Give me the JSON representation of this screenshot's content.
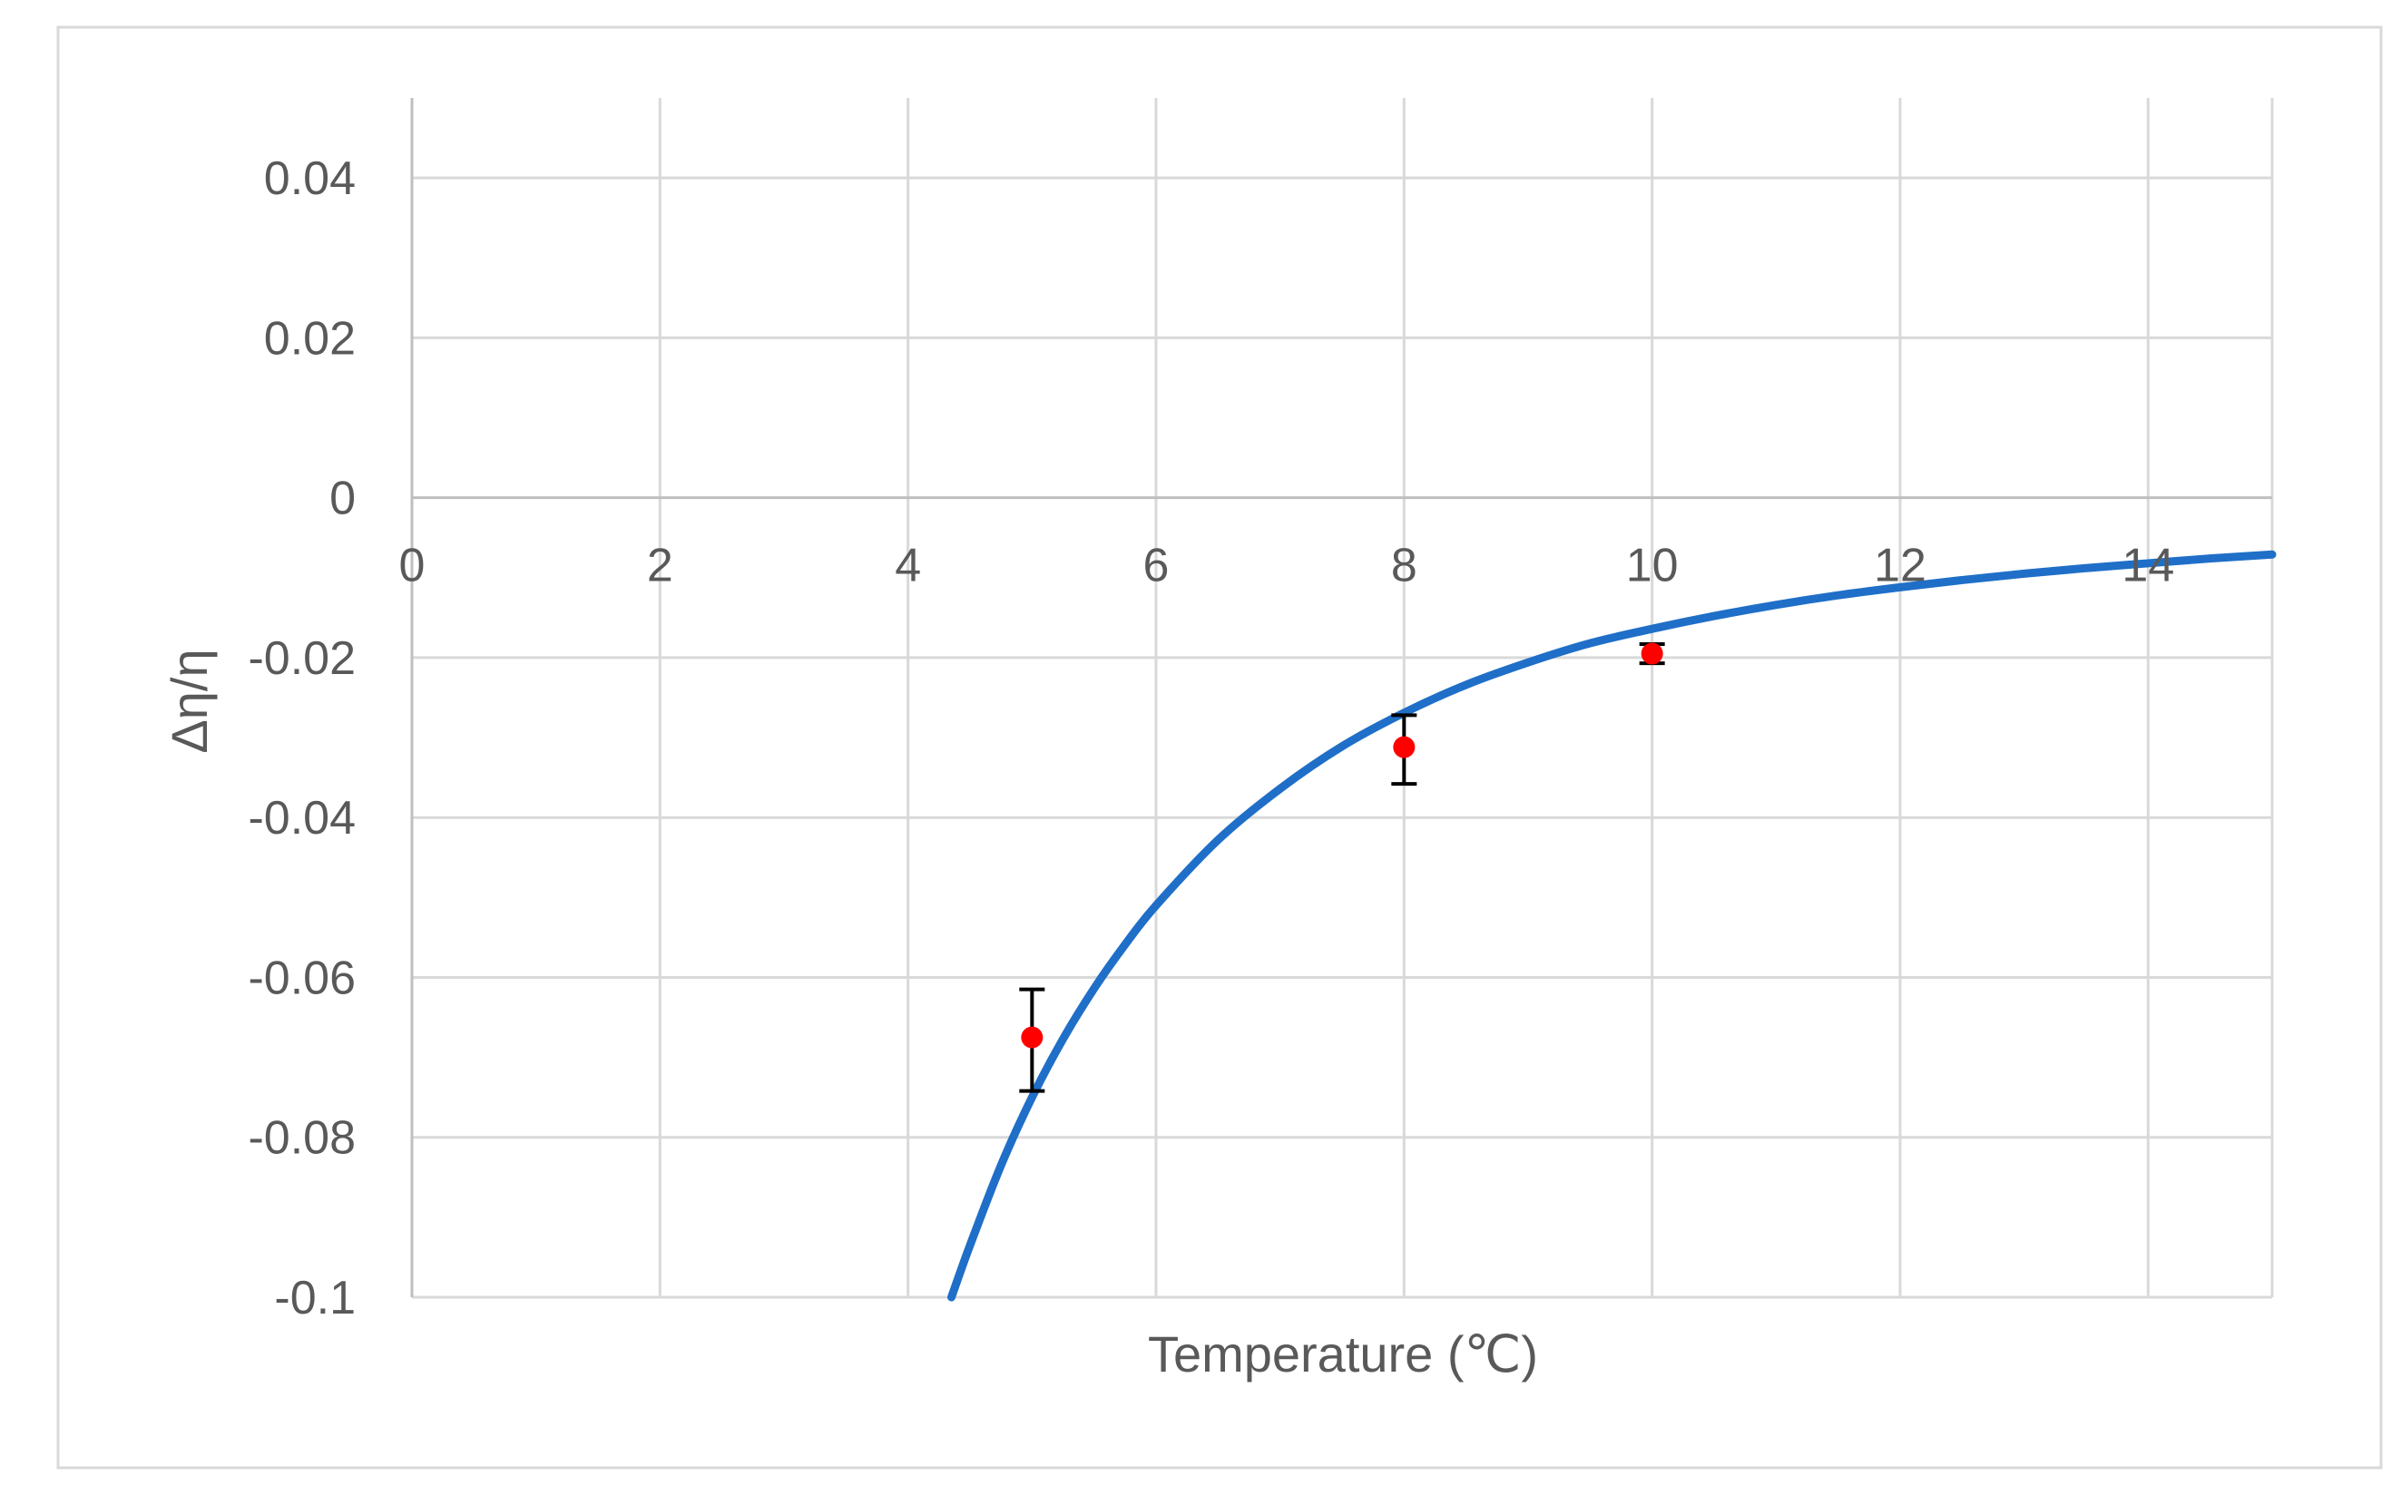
{
  "chart_data": {
    "type": "scatter",
    "title": "",
    "xlabel": "Temperature (℃)",
    "ylabel": "Δη/η",
    "xlim": [
      0,
      15
    ],
    "ylim": [
      -0.1,
      0.05
    ],
    "x_ticks": [
      0,
      2,
      4,
      6,
      8,
      10,
      12,
      14
    ],
    "y_ticks": [
      0.04,
      0.02,
      0,
      -0.02,
      -0.04,
      -0.06,
      -0.08,
      -0.1
    ],
    "y_tick_labels": [
      "0.04",
      "0.02",
      "0",
      "-0.02",
      "-0.04",
      "-0.06",
      "-0.08",
      "-0.1"
    ],
    "x_tick_labels": [
      "0",
      "2",
      "4",
      "6",
      "8",
      "10",
      "12",
      "14"
    ],
    "grid": true,
    "legend": "none",
    "series": [
      {
        "kind": "points",
        "color": "#ff0000",
        "x": [
          5,
          8,
          10
        ],
        "y": [
          -0.0675,
          -0.0312,
          -0.0195
        ],
        "error_low": [
          -0.0742,
          -0.0358,
          -0.0207
        ],
        "error_high": [
          -0.0615,
          -0.0272,
          -0.0183
        ]
      },
      {
        "kind": "fit-curve",
        "color": "#1f6fc8",
        "x": [
          4.35,
          4.5,
          4.75,
          5.0,
          5.25,
          5.5,
          5.75,
          6.0,
          6.5,
          7.0,
          7.5,
          8.0,
          8.5,
          9.0,
          9.5,
          10.0,
          10.5,
          11.0,
          11.5,
          12.0,
          12.5,
          13.0,
          13.5,
          14.0,
          14.5,
          15.0
        ],
        "y": [
          -0.1,
          -0.0935,
          -0.0835,
          -0.075,
          -0.0677,
          -0.0614,
          -0.0559,
          -0.051,
          -0.0428,
          -0.0364,
          -0.0311,
          -0.0269,
          -0.0234,
          -0.0206,
          -0.0182,
          -0.0164,
          -0.0148,
          -0.0134,
          -0.0122,
          -0.0112,
          -0.0103,
          -0.0095,
          -0.0088,
          -0.0082,
          -0.0076,
          -0.0071
        ]
      }
    ]
  }
}
